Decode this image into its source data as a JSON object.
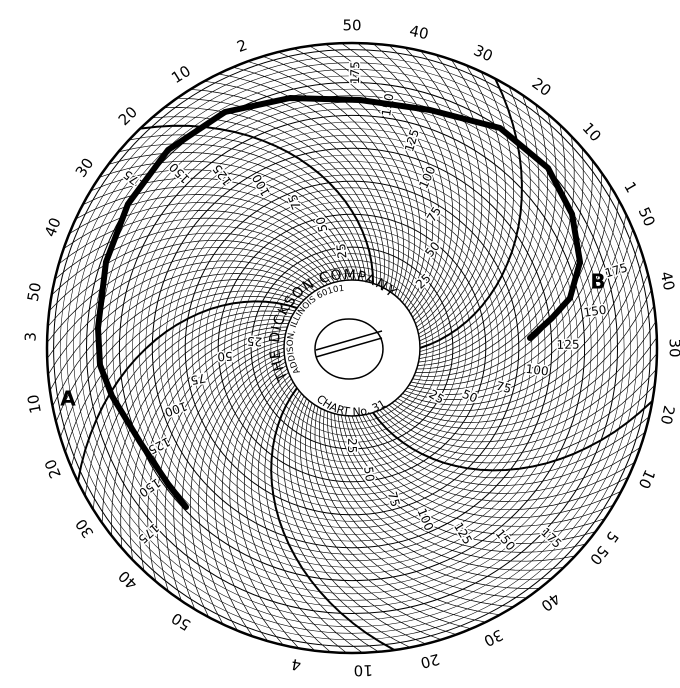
{
  "chart": {
    "maker": "THE DICKSON COMPANY",
    "address": "ADDISON, ILLINOIS 60101",
    "chart_no": "CHART No. 31",
    "scale_labels": [
      "25",
      "50",
      "75",
      "100",
      "125",
      "150",
      "175"
    ],
    "hour_markers": [
      "1",
      "2",
      "3",
      "4",
      "5"
    ],
    "minute_labels": {
      "after_1": [
        "10",
        "20",
        "30",
        "40",
        "50"
      ],
      "after_2": [
        "10",
        "20",
        "30",
        "40",
        "50"
      ],
      "after_3": [
        "10",
        "20",
        "30",
        "40",
        "50"
      ],
      "after_4": [
        "10",
        "20",
        "30",
        "40",
        "50"
      ],
      "before_1": [
        "10",
        "20",
        "30",
        "40",
        "50"
      ]
    },
    "point_labels": {
      "start": "A",
      "end": "B"
    }
  },
  "colors": {
    "ink": "#000000",
    "paper": "#ffffff"
  },
  "icons": {
    "center_logo": "dickson-logo-icon"
  }
}
